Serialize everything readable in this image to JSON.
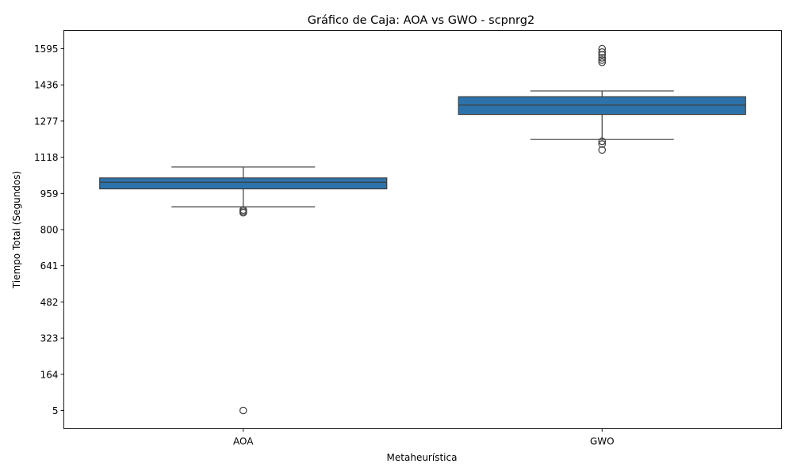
{
  "chart_data": {
    "type": "box",
    "title": "Gráfico de Caja: AOA vs GWO - scpnrg2",
    "xlabel": "Metaheurística",
    "ylabel": "Tiempo Total (Segundos)",
    "ylim": [
      -75,
      1675
    ],
    "y_ticks": [
      5,
      164,
      323,
      482,
      641,
      800,
      959,
      1118,
      1277,
      1436,
      1595
    ],
    "y_tick_labels": [
      "5",
      "164",
      "323",
      "482",
      "641",
      "800",
      "959",
      "1118",
      "1277",
      "1436",
      "1595"
    ],
    "categories": [
      "AOA",
      "GWO"
    ],
    "box_color": "#2d73ab",
    "boxes": [
      {
        "category": "AOA",
        "whisker_low": 900,
        "q1": 979,
        "median": 1008,
        "q3": 1027,
        "whisker_high": 1075,
        "outliers": [
          886,
          880,
          874,
          5
        ]
      },
      {
        "category": "GWO",
        "whisker_low": 1196,
        "q1": 1306,
        "median": 1347,
        "q3": 1384,
        "whisker_high": 1409,
        "outliers": [
          1188,
          1176,
          1150,
          1535,
          1545,
          1555,
          1568,
          1580,
          1595
        ]
      }
    ]
  }
}
